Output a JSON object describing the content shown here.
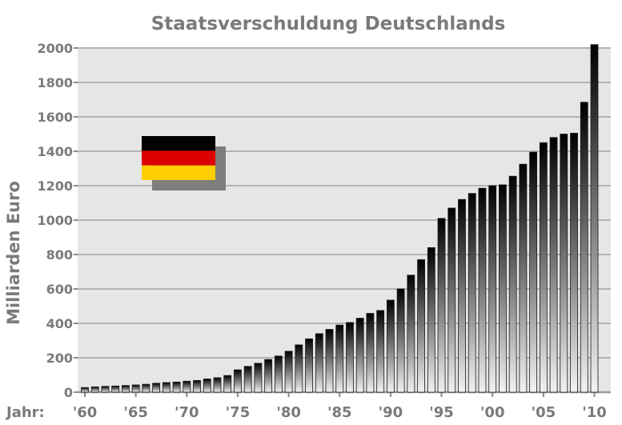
{
  "chart_data": {
    "type": "bar",
    "title": "Staatsverschuldung Deutschlands",
    "ylabel": "Milliarden Euro",
    "xlabel": "Jahr:",
    "ylim": [
      0,
      2000
    ],
    "y_ticks": [
      "0",
      "200",
      "400",
      "600",
      "800",
      "1000",
      "1200",
      "1400",
      "1600",
      "1800",
      "2000"
    ],
    "x_ticks": [
      {
        "year": 1960,
        "label": "'60"
      },
      {
        "year": 1965,
        "label": "'65"
      },
      {
        "year": 1970,
        "label": "'70"
      },
      {
        "year": 1975,
        "label": "'75"
      },
      {
        "year": 1980,
        "label": "'80"
      },
      {
        "year": 1985,
        "label": "'85"
      },
      {
        "year": 1990,
        "label": "'90"
      },
      {
        "year": 1995,
        "label": "'95"
      },
      {
        "year": 2000,
        "label": "'00"
      },
      {
        "year": 2005,
        "label": "'05"
      },
      {
        "year": 2010,
        "label": "'10"
      }
    ],
    "grid": true,
    "legend": "none",
    "bar_color_top": "#000000",
    "bar_color_bottom": "#f2f2f2",
    "plot_background": "#e6e6e6",
    "grid_color": "#b4b4b4",
    "flag_colors": [
      "#000000",
      "#dd0000",
      "#ffce00"
    ],
    "series": [
      {
        "x": [
          1960,
          1961,
          1962,
          1963,
          1964,
          1965,
          1966,
          1967,
          1968,
          1969,
          1970,
          1971,
          1972,
          1973,
          1974,
          1975,
          1976,
          1977,
          1978,
          1979,
          1980,
          1981,
          1982,
          1983,
          1984,
          1985,
          1986,
          1987,
          1988,
          1989,
          1990,
          1991,
          1992,
          1993,
          1994,
          1995,
          1996,
          1997,
          1998,
          1999,
          2000,
          2001,
          2002,
          2003,
          2004,
          2005,
          2006,
          2007,
          2008,
          2009,
          2010
        ],
        "values": [
          27,
          31,
          34,
          36,
          39,
          42,
          46,
          52,
          56,
          59,
          64,
          68,
          77,
          84,
          97,
          130,
          150,
          168,
          190,
          210,
          238,
          275,
          310,
          340,
          365,
          390,
          405,
          430,
          458,
          475,
          535,
          600,
          680,
          770,
          840,
          1010,
          1070,
          1120,
          1155,
          1185,
          1200,
          1205,
          1255,
          1325,
          1395,
          1450,
          1480,
          1500,
          1505,
          1685,
          2020
        ]
      }
    ]
  }
}
